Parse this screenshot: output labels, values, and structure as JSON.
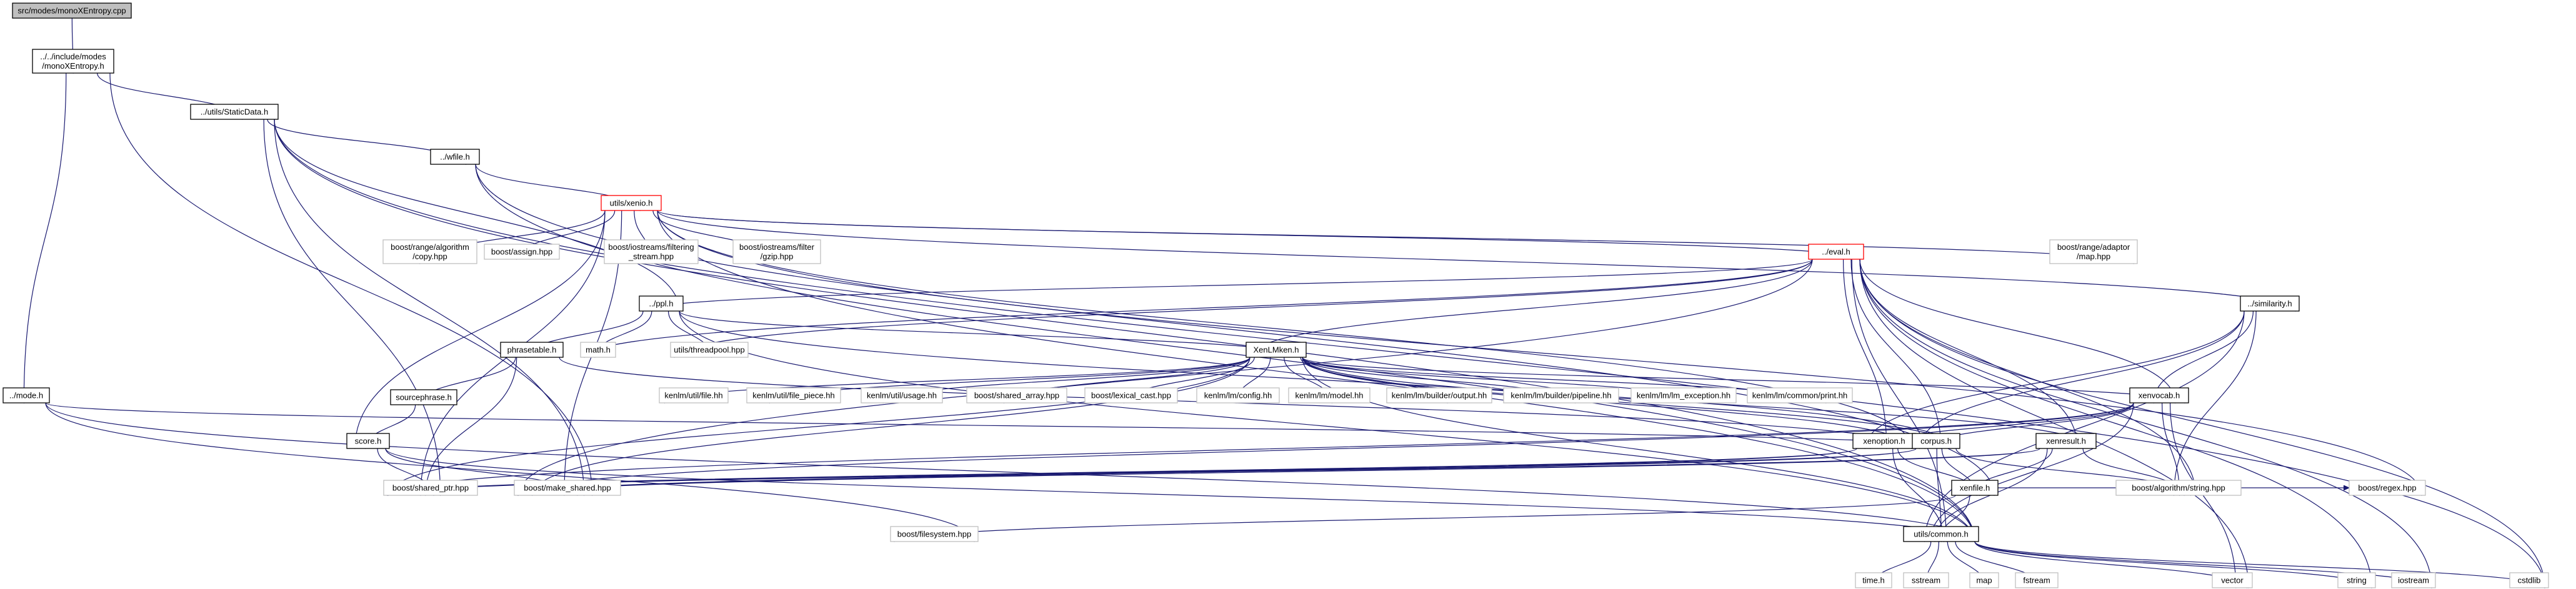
{
  "diagram": {
    "type": "include-dependency-graph",
    "nodes": [
      {
        "id": "n0",
        "kind": "root",
        "lines": [
          "src/modes/monoXEntropy.cpp"
        ]
      },
      {
        "id": "n1",
        "kind": "local",
        "lines": [
          "../../include/modes",
          "/monoXEntropy.h"
        ]
      },
      {
        "id": "n2",
        "kind": "local",
        "lines": [
          "../utils/StaticData.h"
        ]
      },
      {
        "id": "n3",
        "kind": "local",
        "lines": [
          "../mode.h"
        ]
      },
      {
        "id": "n4",
        "kind": "local",
        "lines": [
          "../wfile.h"
        ]
      },
      {
        "id": "n5",
        "kind": "cyclic",
        "lines": [
          "utils/xenio.h"
        ]
      },
      {
        "id": "n6",
        "kind": "external",
        "lines": [
          "boost/range/algorithm",
          "/copy.hpp"
        ]
      },
      {
        "id": "n7",
        "kind": "external",
        "lines": [
          "boost/assign.hpp"
        ]
      },
      {
        "id": "n8",
        "kind": "external",
        "lines": [
          "boost/iostreams/filtering",
          "_stream.hpp"
        ]
      },
      {
        "id": "n9",
        "kind": "external",
        "lines": [
          "boost/iostreams/filter",
          "/gzip.hpp"
        ]
      },
      {
        "id": "n10",
        "kind": "cyclic",
        "lines": [
          "../eval.h"
        ]
      },
      {
        "id": "n11",
        "kind": "external",
        "lines": [
          "boost/range/adaptor",
          "/map.hpp"
        ]
      },
      {
        "id": "n12",
        "kind": "local",
        "lines": [
          "../ppl.h"
        ]
      },
      {
        "id": "n13",
        "kind": "external",
        "lines": [
          "math.h"
        ]
      },
      {
        "id": "n14",
        "kind": "external",
        "lines": [
          "utils/threadpool.hpp"
        ]
      },
      {
        "id": "n15",
        "kind": "local",
        "lines": [
          "phrasetable.h"
        ]
      },
      {
        "id": "n16",
        "kind": "local",
        "lines": [
          "XenLMken.h"
        ]
      },
      {
        "id": "n17",
        "kind": "local",
        "lines": [
          "../similarity.h"
        ]
      },
      {
        "id": "n18",
        "kind": "local",
        "lines": [
          "sourcephrase.h"
        ]
      },
      {
        "id": "n19",
        "kind": "local",
        "lines": [
          "score.h"
        ]
      },
      {
        "id": "n20",
        "kind": "external",
        "lines": [
          "kenlm/util/file.hh"
        ]
      },
      {
        "id": "n21",
        "kind": "external",
        "lines": [
          "kenlm/util/file_piece.hh"
        ]
      },
      {
        "id": "n22",
        "kind": "external",
        "lines": [
          "kenlm/util/usage.hh"
        ]
      },
      {
        "id": "n23",
        "kind": "external",
        "lines": [
          "boost/shared_array.hpp"
        ]
      },
      {
        "id": "n24",
        "kind": "external",
        "lines": [
          "boost/lexical_cast.hpp"
        ]
      },
      {
        "id": "n25",
        "kind": "external",
        "lines": [
          "kenlm/lm/config.hh"
        ]
      },
      {
        "id": "n26",
        "kind": "external",
        "lines": [
          "kenlm/lm/model.hh"
        ]
      },
      {
        "id": "n27",
        "kind": "external",
        "lines": [
          "kenlm/lm/builder/output.hh"
        ]
      },
      {
        "id": "n28",
        "kind": "external",
        "lines": [
          "kenlm/lm/builder/pipeline.hh"
        ]
      },
      {
        "id": "n29",
        "kind": "external",
        "lines": [
          "kenlm/lm/lm_exception.hh"
        ]
      },
      {
        "id": "n30",
        "kind": "external",
        "lines": [
          "kenlm/lm/common/print.hh"
        ]
      },
      {
        "id": "n31",
        "kind": "local",
        "lines": [
          "xenvocab.h"
        ]
      },
      {
        "id": "n32",
        "kind": "local",
        "lines": [
          "xenoption.h"
        ]
      },
      {
        "id": "n33",
        "kind": "local",
        "lines": [
          "corpus.h"
        ]
      },
      {
        "id": "n34",
        "kind": "local",
        "lines": [
          "xenresult.h"
        ]
      },
      {
        "id": "n35",
        "kind": "external",
        "lines": [
          "boost/shared_ptr.hpp"
        ]
      },
      {
        "id": "n36",
        "kind": "external",
        "lines": [
          "boost/make_shared.hpp"
        ]
      },
      {
        "id": "n37",
        "kind": "local",
        "lines": [
          "xenfile.h"
        ]
      },
      {
        "id": "n38",
        "kind": "external",
        "lines": [
          "boost/algorithm/string.hpp"
        ]
      },
      {
        "id": "n39",
        "kind": "external",
        "lines": [
          "boost/regex.hpp"
        ]
      },
      {
        "id": "n40",
        "kind": "external",
        "lines": [
          "boost/filesystem.hpp"
        ]
      },
      {
        "id": "n41",
        "kind": "local",
        "lines": [
          "utils/common.h"
        ]
      },
      {
        "id": "n42",
        "kind": "external",
        "lines": [
          "time.h"
        ]
      },
      {
        "id": "n43",
        "kind": "external",
        "lines": [
          "sstream"
        ]
      },
      {
        "id": "n44",
        "kind": "external",
        "lines": [
          "map"
        ]
      },
      {
        "id": "n45",
        "kind": "external",
        "lines": [
          "fstream"
        ]
      },
      {
        "id": "n46",
        "kind": "external",
        "lines": [
          "vector"
        ]
      },
      {
        "id": "n47",
        "kind": "external",
        "lines": [
          "string"
        ]
      },
      {
        "id": "n48",
        "kind": "external",
        "lines": [
          "iostream"
        ]
      },
      {
        "id": "n49",
        "kind": "external",
        "lines": [
          "cstdlib"
        ]
      }
    ],
    "edges": [
      [
        "n0",
        "n1"
      ],
      [
        "n1",
        "n2"
      ],
      [
        "n1",
        "n3"
      ],
      [
        "n1",
        "n36"
      ],
      [
        "n2",
        "n4"
      ],
      [
        "n2",
        "n12"
      ],
      [
        "n2",
        "n35"
      ],
      [
        "n2",
        "n36"
      ],
      [
        "n2",
        "n41"
      ],
      [
        "n2",
        "n49"
      ],
      [
        "n3",
        "n33"
      ],
      [
        "n3",
        "n40"
      ],
      [
        "n3",
        "n41"
      ],
      [
        "n4",
        "n5"
      ],
      [
        "n4",
        "n37"
      ],
      [
        "n4",
        "n41"
      ],
      [
        "n5",
        "n6"
      ],
      [
        "n5",
        "n7"
      ],
      [
        "n5",
        "n8"
      ],
      [
        "n5",
        "n9"
      ],
      [
        "n5",
        "n10"
      ],
      [
        "n5",
        "n11"
      ],
      [
        "n5",
        "n17"
      ],
      [
        "n5",
        "n19"
      ],
      [
        "n5",
        "n32"
      ],
      [
        "n5",
        "n35"
      ],
      [
        "n5",
        "n36"
      ],
      [
        "n5",
        "n39"
      ],
      [
        "n5",
        "n41"
      ],
      [
        "n10",
        "n12"
      ],
      [
        "n10",
        "n13"
      ],
      [
        "n10",
        "n14"
      ],
      [
        "n10",
        "n16"
      ],
      [
        "n10",
        "n31"
      ],
      [
        "n10",
        "n32"
      ],
      [
        "n10",
        "n33"
      ],
      [
        "n10",
        "n34"
      ],
      [
        "n10",
        "n36"
      ],
      [
        "n10",
        "n38"
      ],
      [
        "n10",
        "n41"
      ],
      [
        "n10",
        "n46"
      ],
      [
        "n10",
        "n47"
      ],
      [
        "n10",
        "n48"
      ],
      [
        "n10",
        "n49"
      ],
      [
        "n12",
        "n13"
      ],
      [
        "n12",
        "n14"
      ],
      [
        "n12",
        "n15"
      ],
      [
        "n12",
        "n16"
      ],
      [
        "n12",
        "n33"
      ],
      [
        "n12",
        "n41"
      ],
      [
        "n15",
        "n18"
      ],
      [
        "n15",
        "n32"
      ],
      [
        "n15",
        "n35"
      ],
      [
        "n16",
        "n20"
      ],
      [
        "n16",
        "n21"
      ],
      [
        "n16",
        "n22"
      ],
      [
        "n16",
        "n23"
      ],
      [
        "n16",
        "n24"
      ],
      [
        "n16",
        "n25"
      ],
      [
        "n16",
        "n26"
      ],
      [
        "n16",
        "n27"
      ],
      [
        "n16",
        "n28"
      ],
      [
        "n16",
        "n29"
      ],
      [
        "n16",
        "n30"
      ],
      [
        "n16",
        "n31"
      ],
      [
        "n16",
        "n32"
      ],
      [
        "n16",
        "n33"
      ],
      [
        "n16",
        "n34"
      ],
      [
        "n16",
        "n35"
      ],
      [
        "n16",
        "n36"
      ],
      [
        "n16",
        "n41"
      ],
      [
        "n17",
        "n31"
      ],
      [
        "n17",
        "n32"
      ],
      [
        "n17",
        "n33"
      ],
      [
        "n17",
        "n38"
      ],
      [
        "n17",
        "n41"
      ],
      [
        "n18",
        "n19"
      ],
      [
        "n19",
        "n35"
      ],
      [
        "n19",
        "n36"
      ],
      [
        "n19",
        "n41"
      ],
      [
        "n31",
        "n32"
      ],
      [
        "n31",
        "n33"
      ],
      [
        "n31",
        "n35"
      ],
      [
        "n31",
        "n36"
      ],
      [
        "n31",
        "n38"
      ],
      [
        "n31",
        "n41"
      ],
      [
        "n31",
        "n46"
      ],
      [
        "n32",
        "n35"
      ],
      [
        "n32",
        "n36"
      ],
      [
        "n32",
        "n37"
      ],
      [
        "n32",
        "n41"
      ],
      [
        "n33",
        "n35"
      ],
      [
        "n33",
        "n36"
      ],
      [
        "n33",
        "n37"
      ],
      [
        "n33",
        "n38"
      ],
      [
        "n33",
        "n41"
      ],
      [
        "n34",
        "n35"
      ],
      [
        "n34",
        "n36"
      ],
      [
        "n34",
        "n37"
      ],
      [
        "n34",
        "n38"
      ],
      [
        "n34",
        "n41"
      ],
      [
        "n37",
        "n39"
      ],
      [
        "n37",
        "n40"
      ],
      [
        "n37",
        "n41"
      ],
      [
        "n41",
        "n42"
      ],
      [
        "n41",
        "n43"
      ],
      [
        "n41",
        "n44"
      ],
      [
        "n41",
        "n45"
      ],
      [
        "n41",
        "n46"
      ],
      [
        "n41",
        "n47"
      ],
      [
        "n41",
        "n48"
      ],
      [
        "n41",
        "n49"
      ]
    ]
  }
}
